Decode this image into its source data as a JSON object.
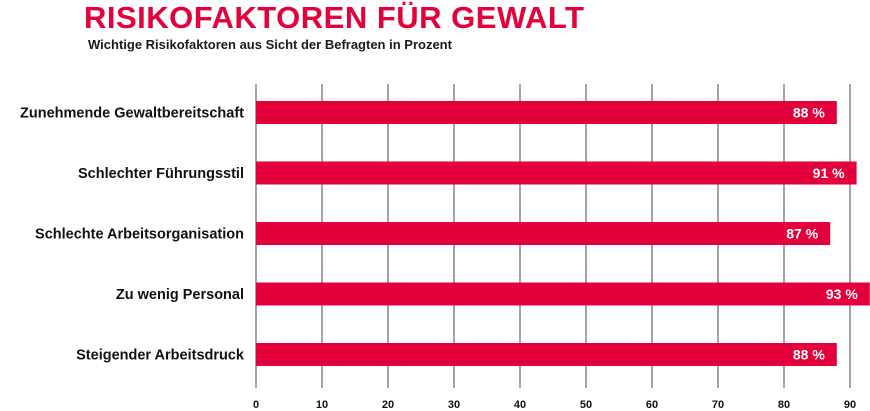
{
  "header": {
    "title": "RISIKOFAKTOREN FÜR GEWALT",
    "subtitle": "Wichtige Risikofaktoren aus Sicht der Befragten in Prozent"
  },
  "chart_data": {
    "type": "bar",
    "orientation": "horizontal",
    "title": "RISIKOFAKTOREN FÜR GEWALT",
    "subtitle": "Wichtige Risikofaktoren aus Sicht der Befragten in Prozent",
    "categories": [
      "Zunehmende Gewaltbereitschaft",
      "Schlechter Führungsstil",
      "Schlechte Arbeitsorganisation",
      "Zu wenig Personal",
      "Steigender Arbeitsdruck"
    ],
    "values": [
      88,
      91,
      87,
      93,
      88
    ],
    "data_labels": [
      "88 %",
      "91 %",
      "87 %",
      "93 %",
      "88 %"
    ],
    "xlabel": "",
    "ylabel": "",
    "xlim": [
      0,
      90
    ],
    "x_ticks": [
      "0",
      "10",
      "20",
      "30",
      "40",
      "50",
      "60",
      "70",
      "80",
      "90"
    ],
    "grid": true,
    "legend": "none",
    "bar_color": "#e4003a",
    "grid_color": "#1a1a1a"
  }
}
